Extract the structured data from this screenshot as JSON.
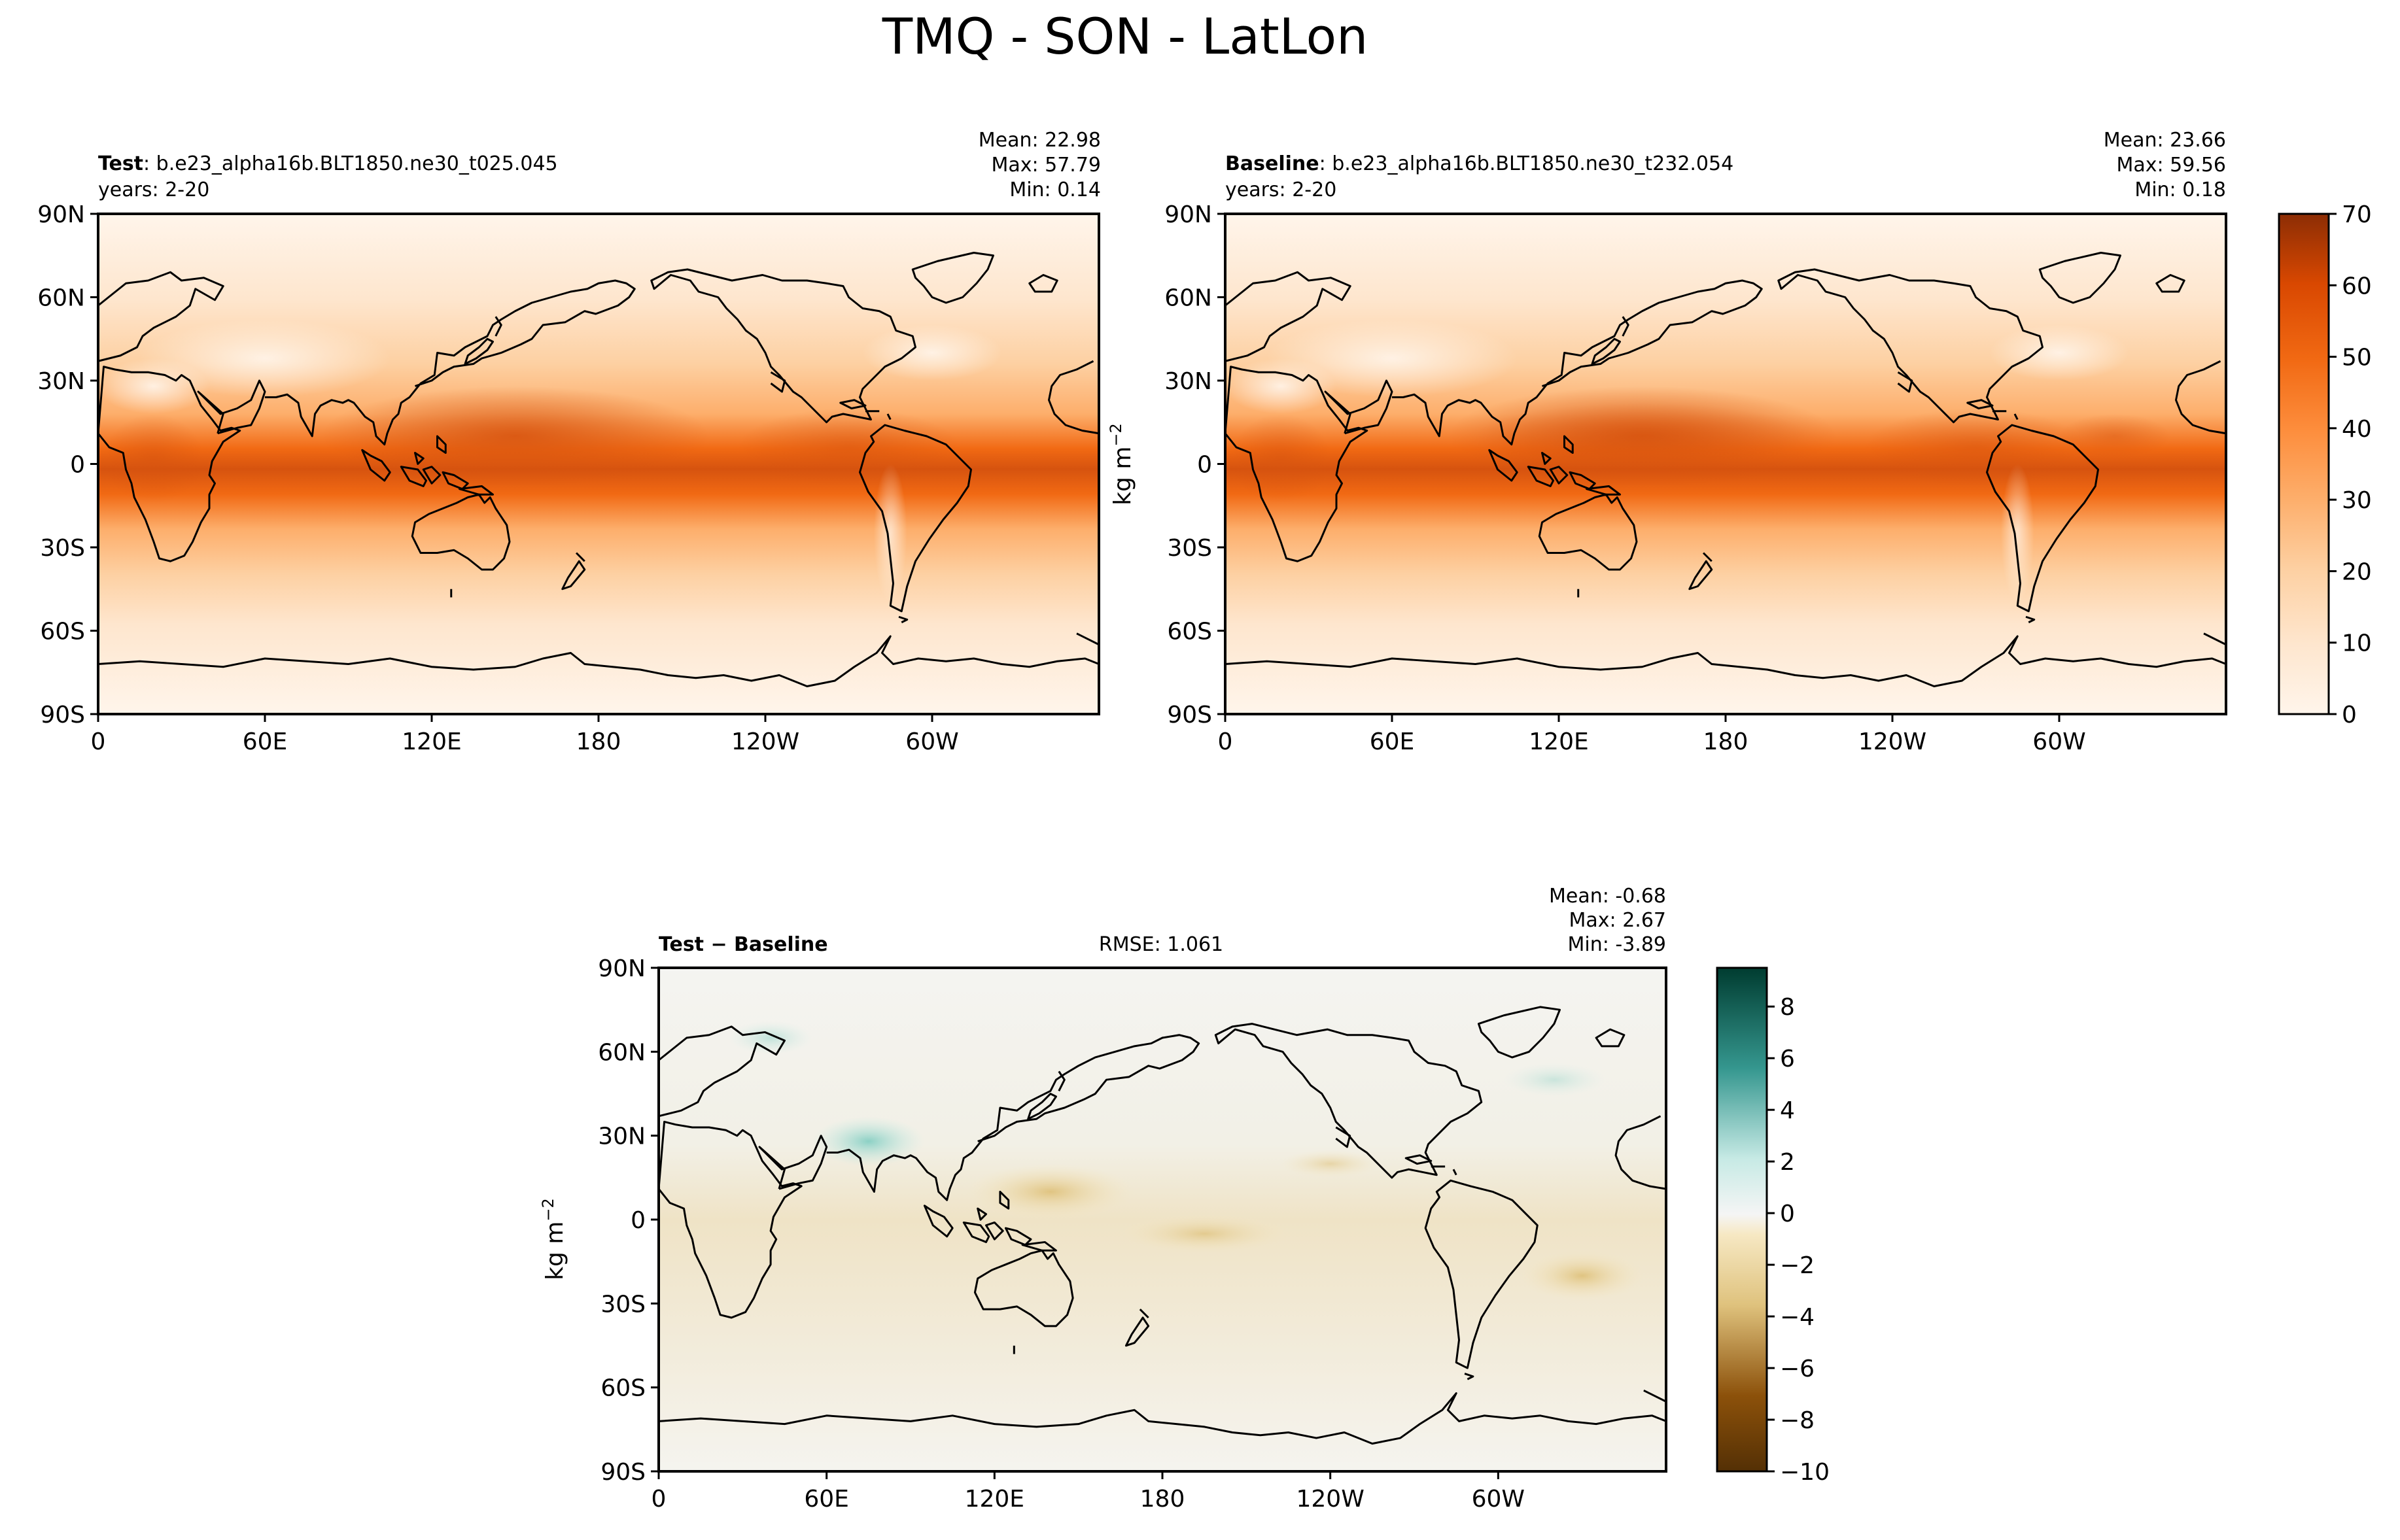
{
  "figure": {
    "title": "TMQ - SON - LatLon"
  },
  "panels": {
    "test": {
      "label_bold": "Test",
      "label_rest": ": b.e23_alpha16b.BLT1850.ne30_t025.045",
      "years": "years: 2-20",
      "stats": {
        "mean": "Mean: 22.98",
        "max": "Max: 57.79",
        "min": "Min:  0.14"
      }
    },
    "baseline": {
      "label_bold": "Baseline",
      "label_rest": ": b.e23_alpha16b.BLT1850.ne30_t232.054",
      "years": "years: 2-20",
      "stats": {
        "mean": "Mean: 23.66",
        "max": "Max: 59.56",
        "min": "Min:  0.18"
      }
    },
    "diff": {
      "label_bold": "Test − Baseline",
      "rmse": "RMSE: 1.061",
      "stats": {
        "mean": "Mean: -0.68",
        "max": "Max:  2.67",
        "min": "Min: -3.89"
      }
    }
  },
  "axes": {
    "lat_ticks": [
      "90N",
      "60N",
      "30N",
      "0",
      "30S",
      "60S",
      "90S"
    ],
    "lon_ticks": [
      "0",
      "60E",
      "120E",
      "180",
      "120W",
      "60W"
    ]
  },
  "colorbars": {
    "main": {
      "unit_text": "kg m",
      "unit_sup": "−2",
      "ticks": [
        "0",
        "10",
        "20",
        "30",
        "40",
        "50",
        "60",
        "70"
      ],
      "range": [
        0,
        70
      ]
    },
    "diff": {
      "unit_text": "kg m",
      "unit_sup": "−2",
      "ticks": [
        "8",
        "6",
        "4",
        "2",
        "0",
        "−2",
        "−4",
        "−6",
        "−8",
        "−10"
      ],
      "range": [
        -10,
        9.5
      ]
    }
  },
  "colors": {
    "ocean_low": "#fff5eb",
    "moist_peak": "#d6530f",
    "diff_positive": "#35978f",
    "diff_negative": "#bf812d",
    "diff_neutral": "#f5f5f0"
  }
}
